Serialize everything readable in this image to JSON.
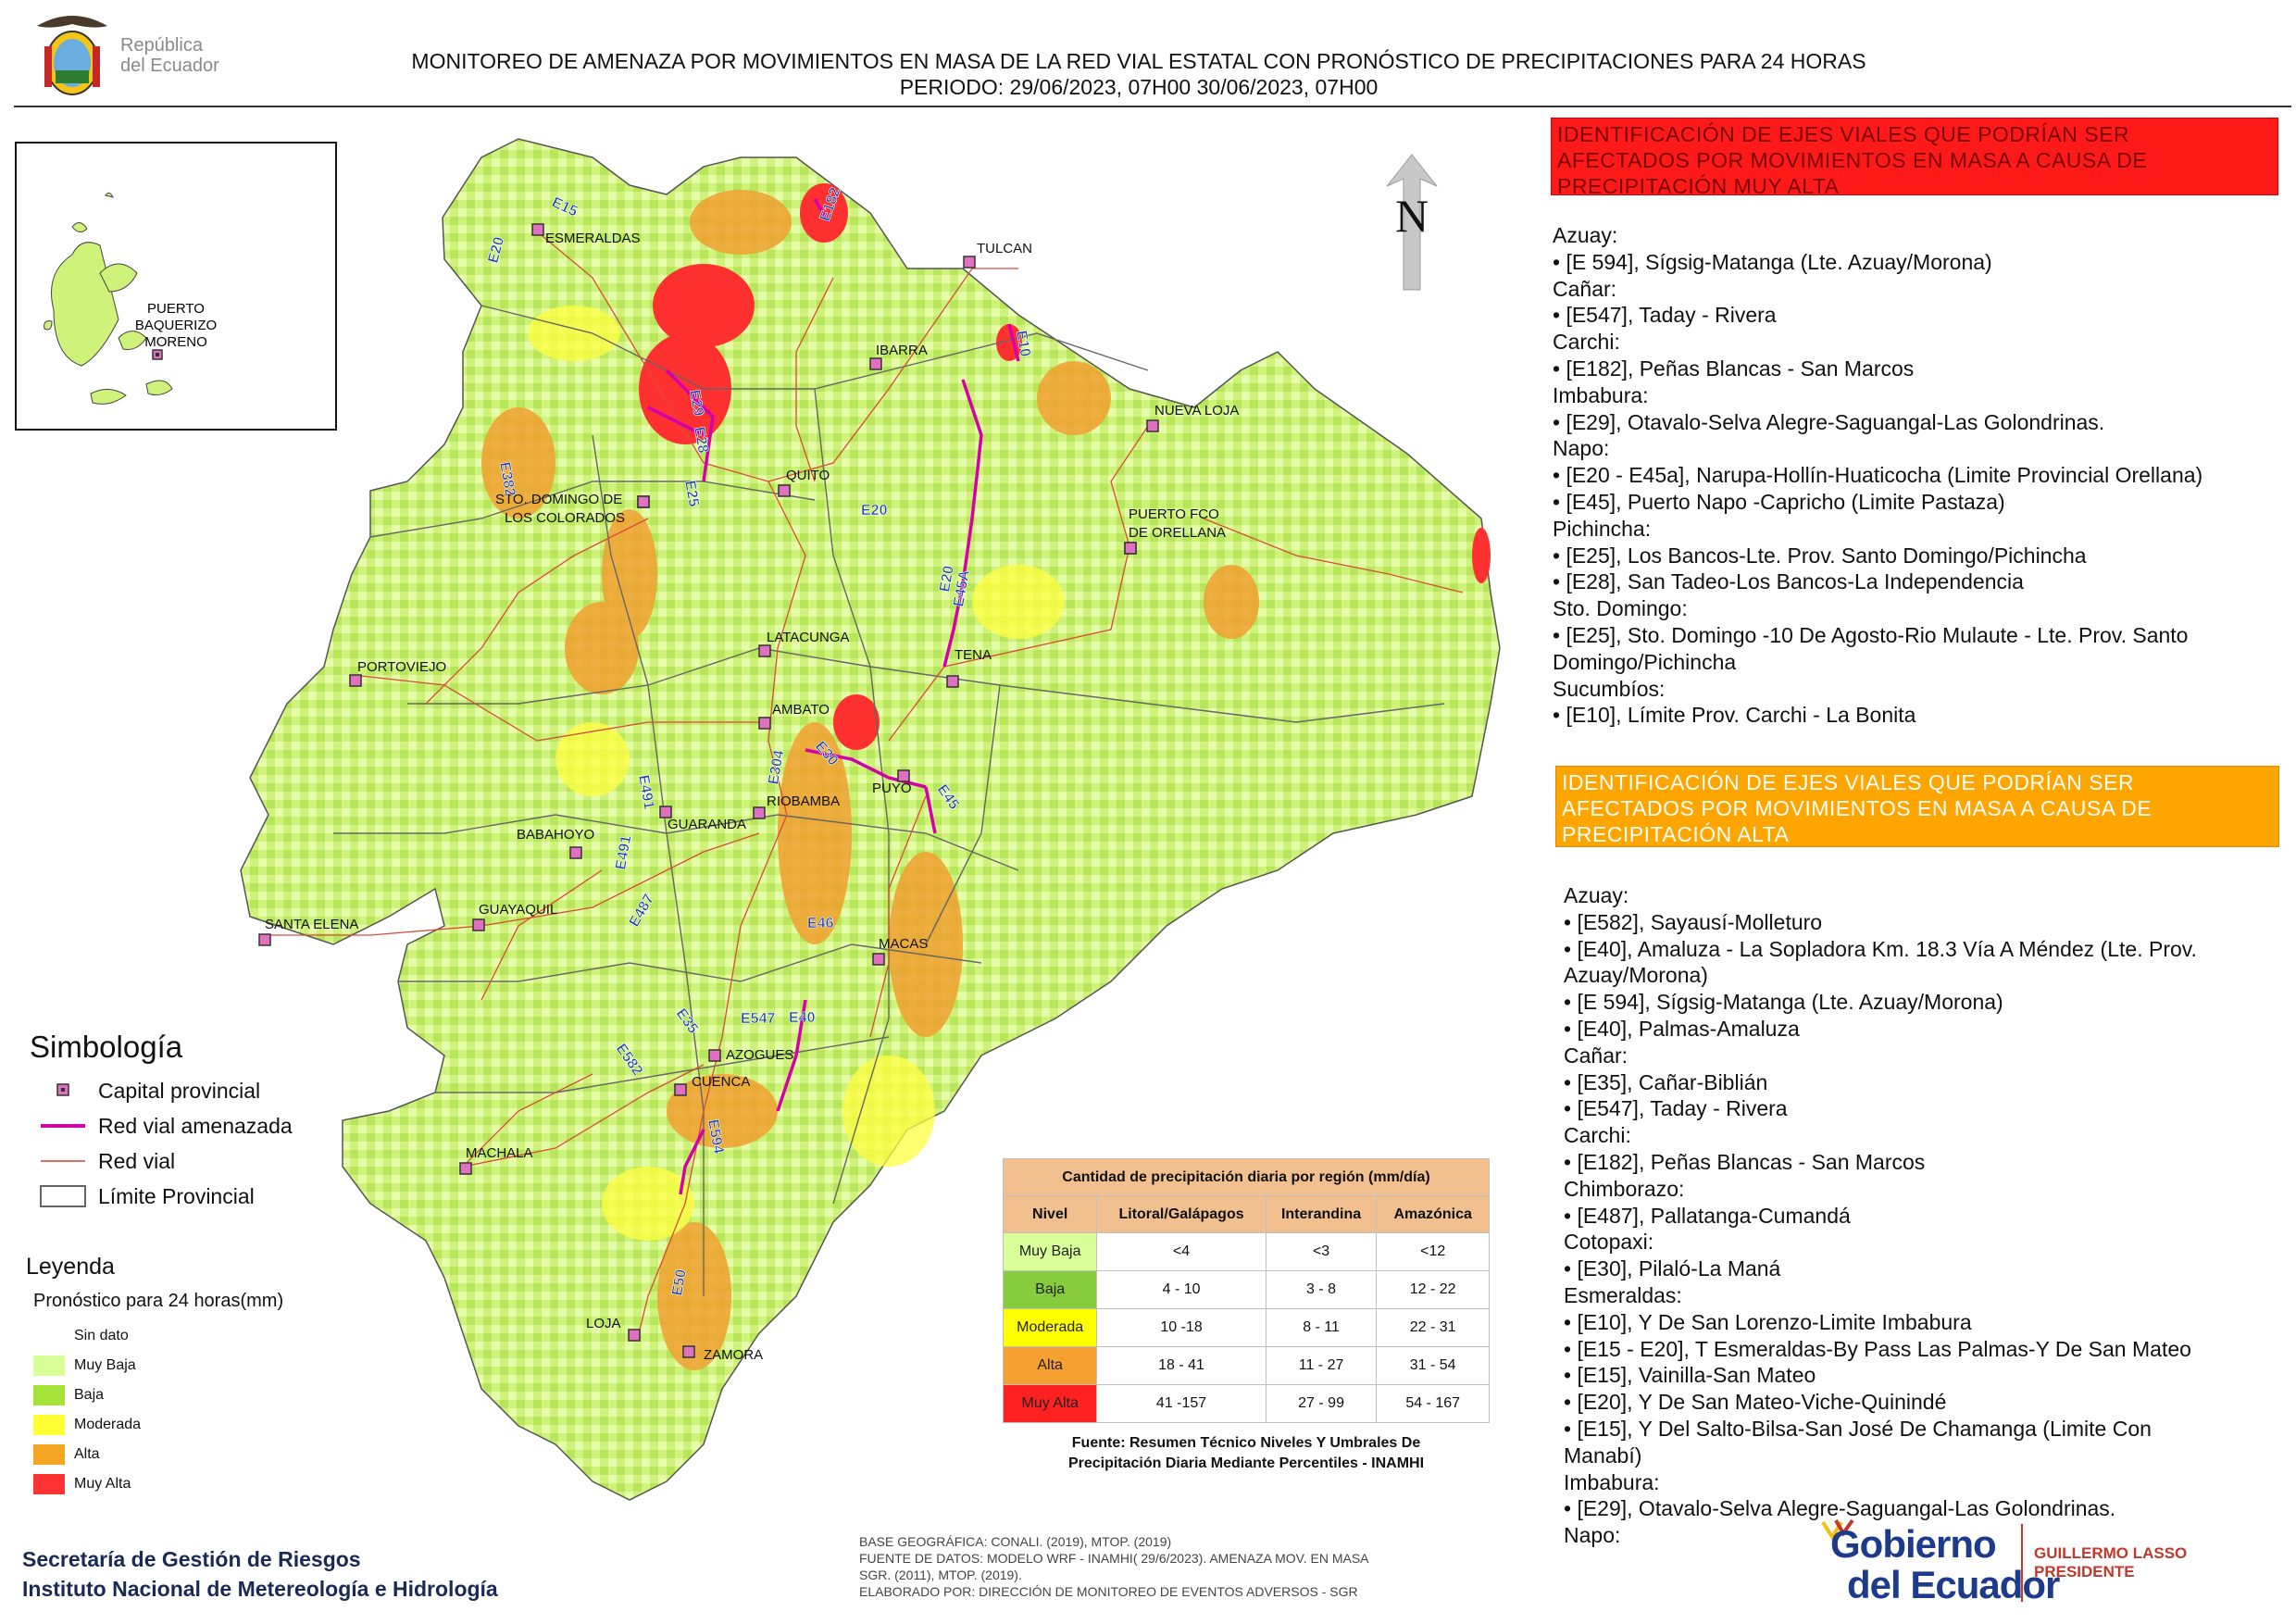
{
  "header": {
    "logo_line1": "República",
    "logo_line2": "del Ecuador",
    "title_line1": "MONITOREO DE AMENAZA POR MOVIMIENTOS EN MASA DE LA RED VIAL  ESTATAL  CON PRONÓSTICO  DE  PRECIPITACIONES PARA 24 HORAS",
    "title_line2": "PERIODO: 29/06/2023, 07H00 30/06/2023, 07H00"
  },
  "north": "N",
  "map": {
    "cities": [
      "ESMERALDAS",
      "TULCAN",
      "IBARRA",
      "NUEVA LOJA",
      "QUITO",
      "STO. DOMINGO DE",
      "LOS COLORADOS",
      "PUERTO FCO",
      "DE ORELLANA",
      "PORTOVIEJO",
      "LATACUNGA",
      "TENA",
      "AMBATO",
      "PUYO",
      "GUARANDA",
      "RIOBAMBA",
      "BABAHOYO",
      "SANTA ELENA",
      "GUAYAQUIL",
      "MACAS",
      "AZOGUES",
      "CUENCA",
      "MACHALA",
      "LOJA",
      "ZAMORA"
    ],
    "roads": [
      "E15",
      "E20",
      "E182",
      "E10",
      "E29",
      "E28",
      "E25",
      "E382",
      "E20",
      "E20",
      "E45A",
      "E491",
      "E304",
      "E30",
      "E45",
      "E491",
      "E487",
      "E46",
      "E35",
      "E547",
      "E40",
      "E582",
      "E594",
      "E50"
    ],
    "inset_label": [
      "PUERTO",
      "BAQUERIZO",
      "MORENO"
    ]
  },
  "symbology": {
    "title": "Simbología",
    "items": [
      "Capital provincial",
      "Red vial amenazada",
      "Red vial",
      "Límite Provincial"
    ]
  },
  "legend": {
    "title": "Leyenda",
    "subtitle": "Pronóstico para 24 horas(mm)",
    "items": [
      {
        "label": "Sin dato",
        "color": "#ffffff"
      },
      {
        "label": "Muy Baja",
        "color": "#d9ff99"
      },
      {
        "label": "Baja",
        "color": "#a5e33a"
      },
      {
        "label": "Moderada",
        "color": "#ffff33"
      },
      {
        "label": "Alta",
        "color": "#f5a623"
      },
      {
        "label": "Muy Alta",
        "color": "#ff3333"
      }
    ]
  },
  "precip_table": {
    "title": "Cantidad de precipitación diaria por región (mm/día)",
    "headers": [
      "Nivel",
      "Litoral/Galápagos",
      "Interandina",
      "Amazónica"
    ],
    "rows": [
      {
        "level": "Muy Baja",
        "color": "#d9ff99",
        "litoral": "<4",
        "interandina": "<3",
        "amazonica": "<12"
      },
      {
        "level": "Baja",
        "color": "#86cc3c",
        "litoral": "4 - 10",
        "interandina": "3 - 8",
        "amazonica": "12 - 22"
      },
      {
        "level": "Moderada",
        "color": "#ffff00",
        "litoral": "10 -18",
        "interandina": "8 - 11",
        "amazonica": "22 - 31"
      },
      {
        "level": "Alta",
        "color": "#f5a030",
        "litoral": "18 - 41",
        "interandina": "11 - 27",
        "amazonica": "31 - 54"
      },
      {
        "level": "Muy Alta",
        "color": "#ff2020",
        "litoral": "41 -157",
        "interandina": "27 - 99",
        "amazonica": "54 - 167"
      }
    ],
    "source_line1": "Fuente: Resumen Técnico Niveles Y Umbrales De",
    "source_line2": "Precipitación Diaria Mediante Percentiles - INAMHI"
  },
  "meta_notes": [
    "BASE GEOGRÁFICA: CONALI. (2019), MTOP. (2019)",
    "FUENTE DE DATOS: MODELO WRF - INAMHI( 29/6/2023).  AMENAZA MOV. EN MASA",
    "SGR. (2011), MTOP. (2019).",
    "ELABORADO POR: DIRECCIÓN DE MONITOREO DE EVENTOS ADVERSOS - SGR"
  ],
  "footer_org": {
    "line1": "Secretaría de Gestión de Riesgos",
    "line2": "Instituto Nacional de Metereología e Hidrología"
  },
  "panel_red": {
    "title_lines": [
      "IDENTIFICACIÓN DE EJES VIALES QUE PODRÍAN SER",
      "AFECTADOS POR MOVIMIENTOS EN MASA A CAUSA DE",
      "PRECIPITACIÓN MUY ALTA"
    ],
    "lines": [
      "Azuay:",
      "• [E 594], Sígsig-Matanga (Lte. Azuay/Morona)",
      "Cañar:",
      "• [E547], Taday - Rivera",
      "Carchi:",
      "• [E182], Peñas Blancas - San Marcos",
      "Imbabura:",
      "• [E29], Otavalo-Selva Alegre-Saguangal-Las Golondrinas.",
      "Napo:",
      "• [E20 - E45a], Narupa-Hollín-Huaticocha (Limite Provincial Orellana)",
      "• [E45], Puerto Napo -Capricho (Limite Pastaza)",
      "Pichincha:",
      "• [E25], Los Bancos-Lte. Prov. Santo Domingo/Pichincha",
      "• [E28], San Tadeo-Los Bancos-La Independencia",
      "Sto. Domingo:",
      "• [E25], Sto. Domingo -10 De Agosto-Rio Mulaute - Lte. Prov. Santo",
      "Domingo/Pichincha",
      "Sucumbíos:",
      "• [E10], Límite Prov. Carchi - La Bonita"
    ]
  },
  "panel_orange": {
    "title_lines": [
      "IDENTIFICACIÓN DE EJES VIALES QUE PODRÍAN SER",
      "AFECTADOS POR MOVIMIENTOS EN MASA A CAUSA DE",
      "PRECIPITACIÓN  ALTA"
    ],
    "lines": [
      "Azuay:",
      "• [E582], Sayausí-Molleturo",
      "• [E40], Amaluza - La Sopladora Km. 18.3 Vía A Méndez (Lte. Prov.",
      "Azuay/Morona)",
      "• [E 594], Sígsig-Matanga (Lte. Azuay/Morona)",
      "• [E40], Palmas-Amaluza",
      "Cañar:",
      "• [E35], Cañar-Biblián",
      "• [E547], Taday - Rivera",
      "Carchi:",
      "• [E182], Peñas Blancas - San Marcos",
      "Chimborazo:",
      "• [E487], Pallatanga-Cumandá",
      "Cotopaxi:",
      "• [E30], Pilaló-La Maná",
      "Esmeraldas:",
      "• [E10], Y De San Lorenzo-Limite Imbabura",
      "• [E15 - E20], T Esmeraldas-By Pass Las Palmas-Y De San Mateo",
      "• [E15], Vainilla-San Mateo",
      "• [E20], Y De San Mateo-Viche-Quinindé",
      "• [E15], Y Del Salto-Bilsa-San José De Chamanga (Limite Con",
      "Manabí)",
      "Imbabura:",
      "• [E29], Otavalo-Selva Alegre-Saguangal-Las Golondrinas.",
      "Napo:"
    ]
  },
  "gob_logo": {
    "word1": "Gobierno",
    "word2": "del Ecuador",
    "president_line1": "GUILLERMO LASSO",
    "president_line2": "PRESIDENTE"
  }
}
